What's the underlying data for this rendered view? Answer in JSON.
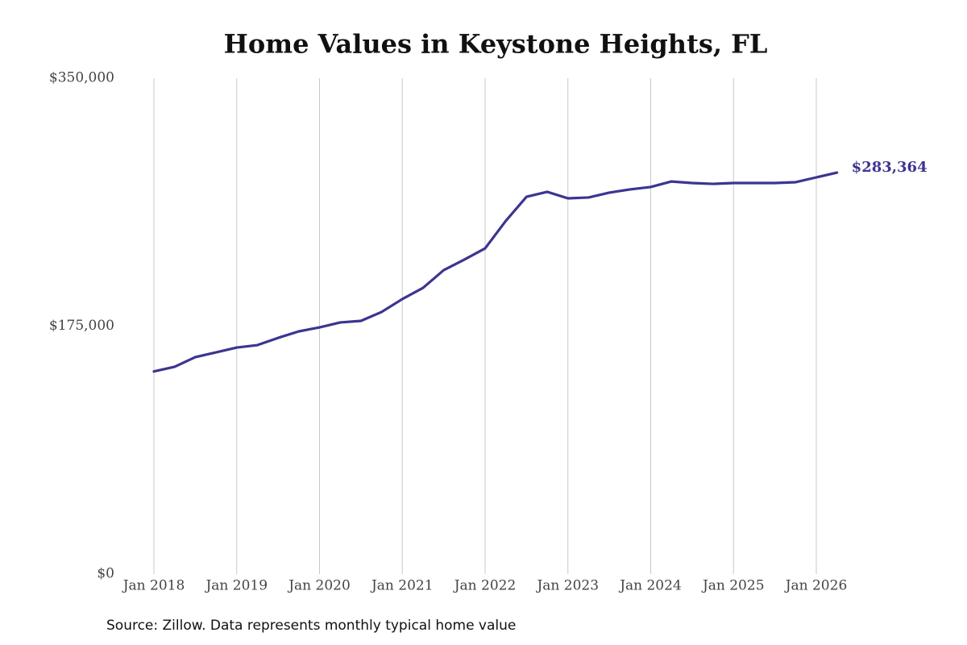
{
  "chart_data": {
    "type": "line",
    "title": "Home Values in Keystone Heights, FL",
    "source": "Source: Zillow. Data represents monthly typical home value",
    "x": [
      "2018-01",
      "2018-04",
      "2018-07",
      "2018-10",
      "2019-01",
      "2019-04",
      "2019-07",
      "2019-10",
      "2020-01",
      "2020-04",
      "2020-07",
      "2020-10",
      "2021-01",
      "2021-04",
      "2021-07",
      "2021-10",
      "2022-01",
      "2022-04",
      "2022-07",
      "2022-10",
      "2023-01",
      "2023-04",
      "2023-07",
      "2023-10",
      "2024-01",
      "2024-04",
      "2024-07",
      "2024-10",
      "2025-01",
      "2025-04",
      "2025-07",
      "2025-10",
      "2026-01",
      "2026-04"
    ],
    "series": [
      {
        "name": "Typical home value",
        "color": "#3b3591",
        "values": [
          143000,
          146300,
          153100,
          156500,
          159900,
          161600,
          166700,
          171300,
          174100,
          177600,
          178700,
          185000,
          194100,
          202000,
          214500,
          222000,
          229900,
          249300,
          266300,
          269800,
          265200,
          265800,
          269200,
          271500,
          273200,
          277100,
          276000,
          275400,
          276000,
          276000,
          276000,
          276600,
          280000,
          283364
        ],
        "value_labels": [
          null,
          null,
          null,
          null,
          null,
          null,
          null,
          null,
          null,
          null,
          null,
          null,
          null,
          null,
          null,
          null,
          null,
          null,
          null,
          null,
          null,
          null,
          null,
          null,
          null,
          null,
          null,
          null,
          null,
          null,
          null,
          null,
          null,
          "$283,364"
        ]
      }
    ],
    "xlim": [
      "2017-09",
      "2026-06"
    ],
    "xticks": [
      {
        "value": "2018-01",
        "label": "Jan 2018"
      },
      {
        "value": "2019-01",
        "label": "Jan 2019"
      },
      {
        "value": "2020-01",
        "label": "Jan 2020"
      },
      {
        "value": "2021-01",
        "label": "Jan 2021"
      },
      {
        "value": "2022-01",
        "label": "Jan 2022"
      },
      {
        "value": "2023-01",
        "label": "Jan 2023"
      },
      {
        "value": "2024-01",
        "label": "Jan 2024"
      },
      {
        "value": "2025-01",
        "label": "Jan 2025"
      },
      {
        "value": "2026-01",
        "label": "Jan 2026"
      }
    ],
    "ylim": [
      0,
      350000
    ],
    "yticks": [
      {
        "value": 0,
        "label": "$0"
      },
      {
        "value": 175000,
        "label": "$175,000"
      },
      {
        "value": 350000,
        "label": "$350,000"
      }
    ],
    "grid": "x"
  }
}
